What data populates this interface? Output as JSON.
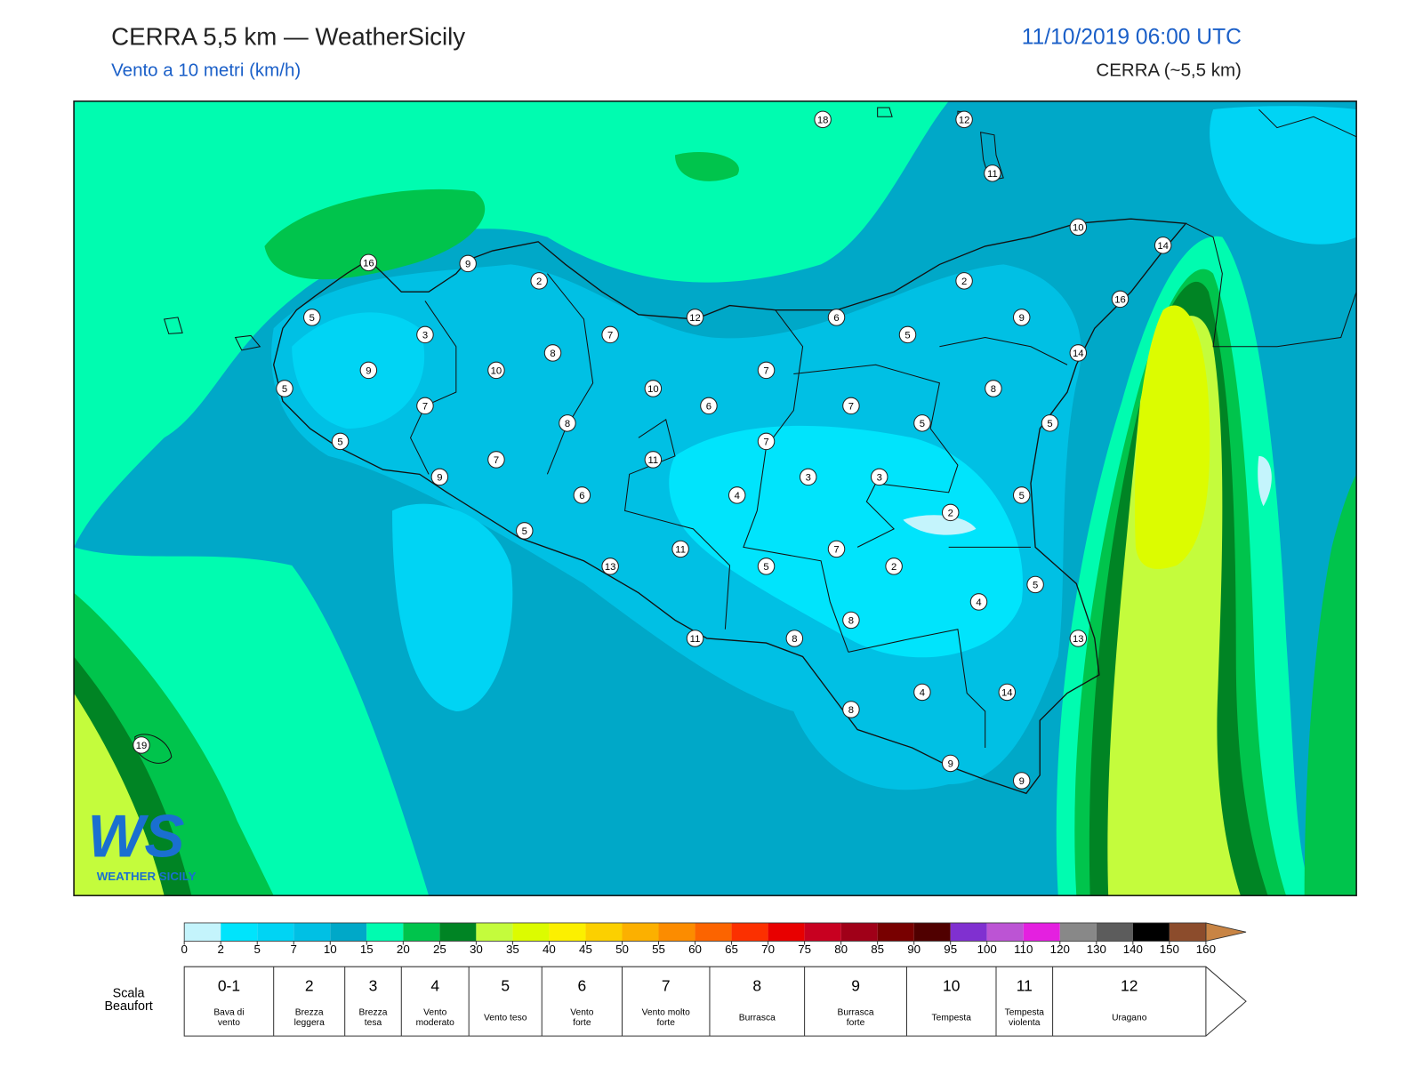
{
  "header": {
    "title": "CERRA 5,5 km — WeatherSicily",
    "subtitle": "Vento a 10 metri (km/h)",
    "datetime": "11/10/2019 06:00 UTC",
    "model": "CERRA (~5,5 km)"
  },
  "logo": {
    "mark": "WS",
    "name": "WEATHER SICILY"
  },
  "stations": [
    18,
    12,
    11,
    10,
    14,
    16,
    9,
    2,
    2,
    16,
    5,
    12,
    6,
    9,
    3,
    7,
    5,
    8,
    14,
    9,
    10,
    7,
    5,
    10,
    8,
    7,
    6,
    7,
    8,
    5,
    5,
    5,
    7,
    7,
    11,
    9,
    3,
    3,
    6,
    4,
    5,
    2,
    5,
    11,
    7,
    13,
    5,
    2,
    5,
    4,
    8,
    11,
    8,
    13,
    4,
    14,
    8,
    19,
    9,
    9
  ],
  "colorbar": {
    "ticks": [
      0,
      2,
      5,
      7,
      10,
      15,
      20,
      25,
      30,
      35,
      40,
      45,
      50,
      55,
      60,
      65,
      70,
      75,
      80,
      85,
      90,
      95,
      100,
      110,
      120,
      130,
      140,
      150,
      160
    ],
    "colors": [
      "#c4f4fc",
      "#00e4fc",
      "#00d4f4",
      "#00c0e4",
      "#00a8c8",
      "#00fcb0",
      "#00c44c",
      "#008424",
      "#c4fc3c",
      "#dcfc00",
      "#fcf000",
      "#fcd000",
      "#fcb000",
      "#fc8c00",
      "#fc6400",
      "#fc3000",
      "#e80000",
      "#c80020",
      "#a00018",
      "#780000",
      "#500000",
      "#8030d0",
      "#bc54d4",
      "#e420e0",
      "#888888",
      "#5c5c5c",
      "#000000",
      "#8c4c2c",
      "#c88444"
    ]
  },
  "beaufort": {
    "label": [
      "Scala",
      "Beaufort"
    ],
    "levels": [
      {
        "force": "0-1",
        "description": [
          "Bava di",
          "vento"
        ]
      },
      {
        "force": "2",
        "description": [
          "Brezza",
          "leggera"
        ]
      },
      {
        "force": "3",
        "description": [
          "Brezza",
          "tesa"
        ]
      },
      {
        "force": "4",
        "description": [
          "Vento",
          "moderato"
        ]
      },
      {
        "force": "5",
        "description": [
          "Vento teso"
        ]
      },
      {
        "force": "6",
        "description": [
          "Vento",
          "forte"
        ]
      },
      {
        "force": "7",
        "description": [
          "Vento molto",
          "forte"
        ]
      },
      {
        "force": "8",
        "description": [
          "Burrasca"
        ]
      },
      {
        "force": "9",
        "description": [
          "Burrasca",
          "forte"
        ]
      },
      {
        "force": "10",
        "description": [
          "Tempesta"
        ]
      },
      {
        "force": "11",
        "description": [
          "Tempesta",
          "violenta"
        ]
      },
      {
        "force": "12",
        "description": [
          "Uragano"
        ]
      }
    ]
  }
}
